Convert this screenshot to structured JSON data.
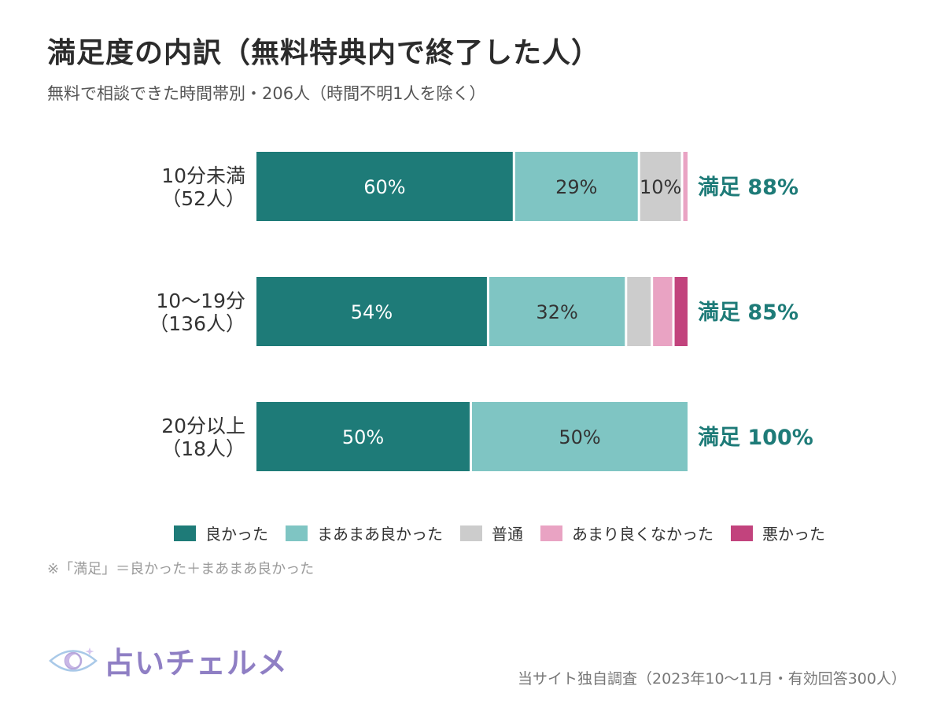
{
  "title": "満足度の内訳（無料特典内で終了した人）",
  "subtitle": "無料で相談できた時間帯別・206人（時間不明1人を除く）",
  "chart_data": {
    "type": "bar",
    "orientation": "horizontal",
    "stacked": true,
    "percent_scale": [
      0,
      100
    ],
    "categories": [
      {
        "line1": "10分未満",
        "line2": "（52人）"
      },
      {
        "line1": "10〜19分",
        "line2": "（136人）"
      },
      {
        "line1": "20分以上",
        "line2": "（18人）"
      }
    ],
    "series": [
      {
        "name": "良かった",
        "color": "#1e7b78",
        "text_color": "#ffffff",
        "values": [
          60,
          54,
          50
        ],
        "labels": [
          "60%",
          "54%",
          "50%"
        ]
      },
      {
        "name": "まあまあ良かった",
        "color": "#7fc5c3",
        "text_color": "#333333",
        "values": [
          29,
          32,
          50
        ],
        "labels": [
          "29%",
          "32%",
          "50%"
        ]
      },
      {
        "name": "普通",
        "color": "#cccccc",
        "text_color": "#333333",
        "values": [
          10,
          6,
          0
        ],
        "labels": [
          "10%",
          "",
          ""
        ]
      },
      {
        "name": "あまり良くなかった",
        "color": "#e9a3c3",
        "text_color": "#333333",
        "values": [
          1,
          5,
          0
        ],
        "labels": [
          "",
          "",
          ""
        ]
      },
      {
        "name": "悪かった",
        "color": "#c2437d",
        "text_color": "#ffffff",
        "values": [
          0,
          3,
          0
        ],
        "labels": [
          "",
          "",
          ""
        ]
      }
    ],
    "satisfaction_labels": [
      "満足 88%",
      "満足 85%",
      "満足 100%"
    ],
    "satisfaction_color": "#1e7b78"
  },
  "footnote": "※「満足」＝良かった＋まあまあ良かった",
  "logo_text": "占いチェルメ",
  "source": "当サイト独自調査（2023年10〜11月・有効回答300人）"
}
